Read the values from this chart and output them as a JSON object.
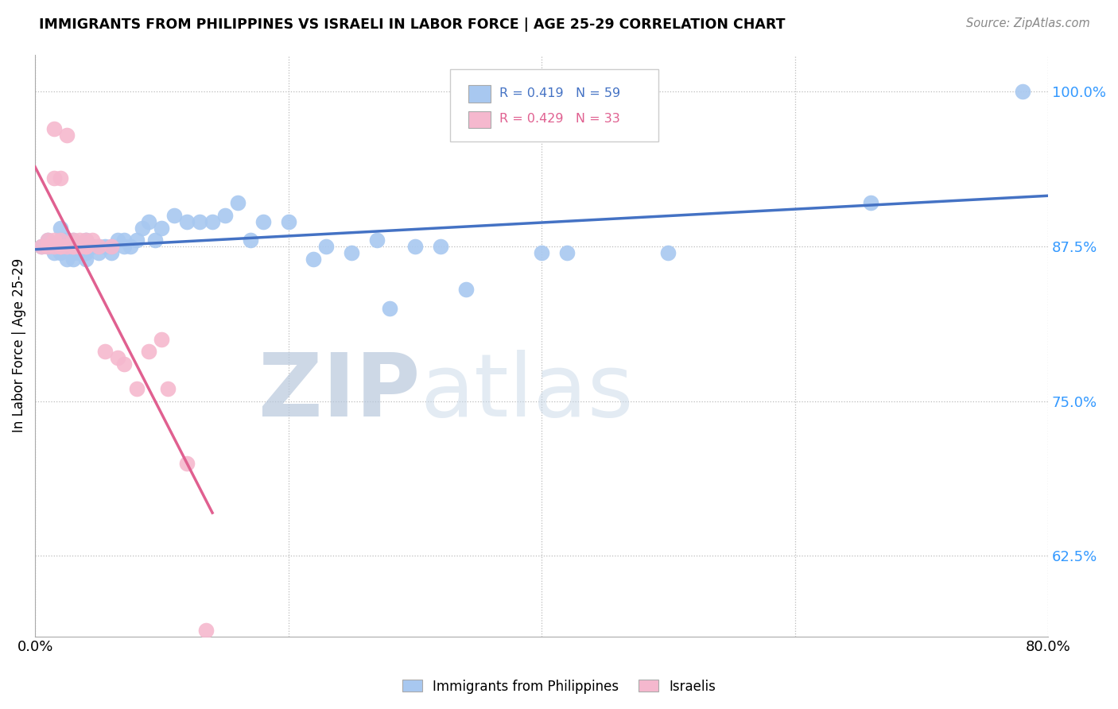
{
  "title": "IMMIGRANTS FROM PHILIPPINES VS ISRAELI IN LABOR FORCE | AGE 25-29 CORRELATION CHART",
  "source": "Source: ZipAtlas.com",
  "ylabel": "In Labor Force | Age 25-29",
  "xlim": [
    0.0,
    0.8
  ],
  "ylim": [
    0.56,
    1.03
  ],
  "yticks": [
    0.625,
    0.75,
    0.875,
    1.0
  ],
  "ytick_labels": [
    "62.5%",
    "75.0%",
    "87.5%",
    "100.0%"
  ],
  "xticks": [
    0.0,
    0.2,
    0.4,
    0.6,
    0.8
  ],
  "xtick_labels": [
    "0.0%",
    "",
    "",
    "",
    "80.0%"
  ],
  "legend_r_blue": "R = 0.419",
  "legend_n_blue": "N = 59",
  "legend_r_pink": "R = 0.429",
  "legend_n_pink": "N = 33",
  "blue_color": "#a8c8f0",
  "pink_color": "#f5b8ce",
  "blue_line_color": "#4472c4",
  "pink_line_color": "#e06090",
  "watermark_zip": "ZIP",
  "watermark_atlas": "atlas",
  "watermark_color": "#ccd8ec",
  "blue_x": [
    0.005,
    0.01,
    0.01,
    0.015,
    0.015,
    0.02,
    0.02,
    0.02,
    0.02,
    0.025,
    0.025,
    0.025,
    0.03,
    0.03,
    0.03,
    0.03,
    0.035,
    0.035,
    0.04,
    0.04,
    0.04,
    0.04,
    0.045,
    0.05,
    0.05,
    0.055,
    0.06,
    0.06,
    0.065,
    0.07,
    0.07,
    0.075,
    0.08,
    0.085,
    0.09,
    0.095,
    0.1,
    0.11,
    0.12,
    0.13,
    0.14,
    0.15,
    0.16,
    0.17,
    0.18,
    0.2,
    0.22,
    0.23,
    0.25,
    0.27,
    0.28,
    0.3,
    0.32,
    0.34,
    0.4,
    0.42,
    0.5,
    0.66,
    0.78
  ],
  "blue_y": [
    0.875,
    0.875,
    0.88,
    0.87,
    0.875,
    0.87,
    0.875,
    0.88,
    0.89,
    0.865,
    0.875,
    0.88,
    0.865,
    0.87,
    0.875,
    0.88,
    0.87,
    0.875,
    0.865,
    0.87,
    0.875,
    0.88,
    0.875,
    0.87,
    0.875,
    0.875,
    0.87,
    0.875,
    0.88,
    0.875,
    0.88,
    0.875,
    0.88,
    0.89,
    0.895,
    0.88,
    0.89,
    0.9,
    0.895,
    0.895,
    0.895,
    0.9,
    0.91,
    0.88,
    0.895,
    0.895,
    0.865,
    0.875,
    0.87,
    0.88,
    0.825,
    0.875,
    0.875,
    0.84,
    0.87,
    0.87,
    0.87,
    0.91,
    1.0
  ],
  "pink_x": [
    0.005,
    0.01,
    0.01,
    0.015,
    0.015,
    0.015,
    0.015,
    0.02,
    0.02,
    0.02,
    0.02,
    0.025,
    0.025,
    0.03,
    0.03,
    0.03,
    0.035,
    0.035,
    0.04,
    0.04,
    0.04,
    0.045,
    0.05,
    0.055,
    0.06,
    0.065,
    0.07,
    0.08,
    0.09,
    0.1,
    0.105,
    0.12,
    0.135
  ],
  "pink_y": [
    0.875,
    0.875,
    0.88,
    0.875,
    0.88,
    0.93,
    0.97,
    0.875,
    0.88,
    0.875,
    0.93,
    0.875,
    0.965,
    0.875,
    0.88,
    0.875,
    0.875,
    0.88,
    0.875,
    0.88,
    0.875,
    0.88,
    0.875,
    0.79,
    0.875,
    0.785,
    0.78,
    0.76,
    0.79,
    0.8,
    0.76,
    0.7,
    0.565
  ]
}
